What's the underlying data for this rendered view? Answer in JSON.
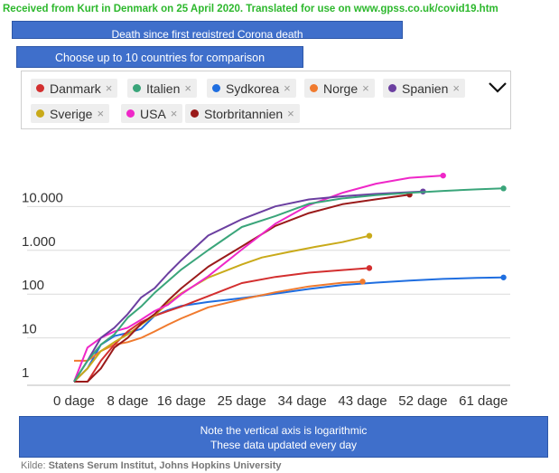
{
  "banner": "Received from Kurt in Denmark on 25 April 2020. Translated for use on www.gpss.co.uk/covid19.htm",
  "box_title": "Death since first registred Corona death",
  "box_choose": "Choose up to 10 countries for comparison",
  "box_note": {
    "line1": "Note the vertical axis is logarithmic",
    "line2": "These data updated every day"
  },
  "source": {
    "prefix": "Kilde: ",
    "text": "Statens Serum Institut, Johns Hopkins University"
  },
  "chips": [
    {
      "label": "Danmark",
      "color": "#d32f2f",
      "remove": "×"
    },
    {
      "label": "Italien",
      "color": "#3aa57a",
      "remove": "×"
    },
    {
      "label": "Sydkorea",
      "color": "#1f6ee0",
      "remove": "×"
    },
    {
      "label": "Norge",
      "color": "#f07a2e",
      "remove": "×"
    },
    {
      "label": "Spanien",
      "color": "#6b3fa0",
      "remove": "×"
    },
    {
      "label": "Sverige",
      "color": "#c9aa1a",
      "remove": "×"
    },
    {
      "label": "USA",
      "color": "#ef27c8",
      "remove": "×"
    },
    {
      "label": "Storbritannien",
      "color": "#9a1a1a",
      "remove": "×"
    }
  ],
  "chart_data": {
    "type": "line",
    "title": "",
    "xlabel": "",
    "ylabel": "",
    "y_scale": "log",
    "ylim": [
      1,
      100000
    ],
    "xlim": [
      0,
      65
    ],
    "x_ticks": [
      0,
      8,
      16,
      25,
      34,
      43,
      52,
      61
    ],
    "x_tick_labels": [
      "0 dage",
      "8 dage",
      "16 dage",
      "25 dage",
      "34 dage",
      "43 dage",
      "52 dage",
      "61 dage"
    ],
    "y_ticks": [
      1,
      10,
      100,
      1000,
      10000
    ],
    "y_tick_labels": [
      "1",
      "10",
      "100",
      "1.000",
      "10.000"
    ],
    "grid": true,
    "series": [
      {
        "name": "Sydkorea",
        "color": "#1f6ee0",
        "x": [
          0,
          2,
          4,
          6,
          8,
          10,
          12,
          14,
          16,
          20,
          25,
          30,
          35,
          40,
          45,
          50,
          55,
          60,
          64
        ],
        "y": [
          1,
          2,
          7,
          11,
          13,
          16,
          32,
          43,
          54,
          66,
          81,
          102,
          131,
          162,
          183,
          204,
          222,
          234,
          240
        ]
      },
      {
        "name": "Norge",
        "color": "#f07a2e",
        "x": [
          0,
          2,
          4,
          6,
          8,
          10,
          12,
          14,
          16,
          20,
          25,
          30,
          35,
          40,
          43
        ],
        "y": [
          3,
          3,
          5,
          7,
          8,
          10,
          14,
          20,
          28,
          50,
          76,
          110,
          150,
          182,
          193
        ]
      },
      {
        "name": "Danmark",
        "color": "#d32f2f",
        "x": [
          0,
          2,
          4,
          6,
          8,
          10,
          12,
          14,
          16,
          20,
          25,
          30,
          35,
          40,
          44
        ],
        "y": [
          1,
          1,
          3,
          7,
          14,
          23,
          32,
          41,
          52,
          90,
          179,
          247,
          309,
          355,
          394
        ]
      },
      {
        "name": "Sverige",
        "color": "#c9aa1a",
        "x": [
          0,
          2,
          4,
          6,
          8,
          10,
          12,
          14,
          16,
          20,
          25,
          28,
          32,
          36,
          40,
          44
        ],
        "y": [
          1,
          2,
          5,
          8,
          12,
          20,
          33,
          62,
          105,
          239,
          477,
          687,
          919,
          1203,
          1540,
          2152
        ]
      },
      {
        "name": "Storbritannien",
        "color": "#9a1a1a",
        "x": [
          0,
          2,
          4,
          6,
          8,
          10,
          12,
          14,
          16,
          20,
          25,
          30,
          35,
          40,
          45,
          50
        ],
        "y": [
          1,
          1,
          2,
          6,
          10,
          21,
          35,
          71,
          137,
          422,
          1228,
          3605,
          7097,
          11329,
          14607,
          18738
        ]
      },
      {
        "name": "USA",
        "color": "#ef27c8",
        "x": [
          0,
          2,
          4,
          6,
          8,
          10,
          12,
          14,
          16,
          20,
          25,
          30,
          35,
          40,
          45,
          50,
          55
        ],
        "y": [
          1,
          6,
          10,
          14,
          17,
          26,
          41,
          57,
          100,
          257,
          1046,
          4055,
          10783,
          20608,
          33256,
          45340,
          51017
        ]
      },
      {
        "name": "Spanien",
        "color": "#6b3fa0",
        "x": [
          0,
          2,
          4,
          6,
          8,
          10,
          12,
          14,
          16,
          20,
          25,
          30,
          35,
          40,
          45,
          52
        ],
        "y": [
          1,
          3,
          10,
          17,
          35,
          84,
          136,
          294,
          598,
          2182,
          5138,
          10096,
          14555,
          17209,
          19478,
          22157
        ]
      },
      {
        "name": "Italien",
        "color": "#3aa57a",
        "x": [
          0,
          2,
          4,
          6,
          8,
          10,
          12,
          14,
          16,
          20,
          25,
          30,
          35,
          40,
          45,
          50,
          55,
          60,
          64
        ],
        "y": [
          1,
          3,
          7,
          12,
          29,
          52,
          107,
          197,
          366,
          1016,
          3405,
          6077,
          11591,
          15362,
          18279,
          20465,
          22745,
          24648,
          25969
        ]
      }
    ]
  }
}
